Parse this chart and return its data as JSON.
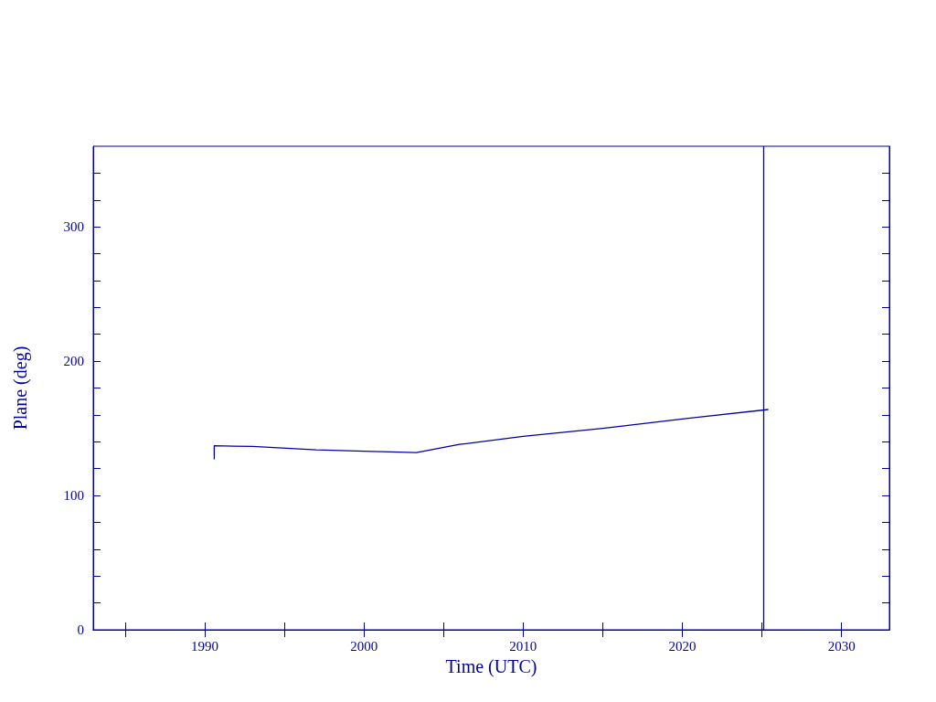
{
  "chart_data": {
    "type": "line",
    "xlabel": "Time (UTC)",
    "ylabel": "Plane (deg)",
    "x": [
      1990.6,
      1990.6,
      1993,
      1997,
      2000,
      2003.3,
      2006,
      2010,
      2015,
      2020,
      2025.4
    ],
    "values": [
      127,
      137,
      136.5,
      134,
      133,
      132,
      138,
      144,
      150,
      157,
      164
    ],
    "color": "#0000a0",
    "xlim": [
      1983,
      2033
    ],
    "xticks": [
      {
        "value": 1985,
        "label": null
      },
      1990,
      {
        "value": 1995,
        "label": null
      },
      2000,
      {
        "value": 2005,
        "label": null
      },
      2010,
      {
        "value": 2015,
        "label": null
      },
      2020,
      {
        "value": 2025,
        "label": null
      },
      2030
    ],
    "ylim": [
      0,
      360
    ],
    "yticks": [
      0,
      {
        "value": 20,
        "label": null
      },
      {
        "value": 40,
        "label": null
      },
      {
        "value": 60,
        "label": null
      },
      {
        "value": 80,
        "label": null
      },
      100,
      {
        "value": 120,
        "label": null
      },
      {
        "value": 140,
        "label": null
      },
      {
        "value": 160,
        "label": null
      },
      {
        "value": 180,
        "label": null
      },
      200,
      {
        "value": 220,
        "label": null
      },
      {
        "value": 240,
        "label": null
      },
      {
        "value": 260,
        "label": null
      },
      {
        "value": 280,
        "label": null
      },
      300,
      {
        "value": 320,
        "label": null
      },
      {
        "value": 340,
        "label": null
      }
    ],
    "ref_lines": [
      {
        "axis": "x",
        "value": 2025.1,
        "color": "#0000a0"
      }
    ],
    "grid": false,
    "marker": "none",
    "line_style": "solid"
  }
}
